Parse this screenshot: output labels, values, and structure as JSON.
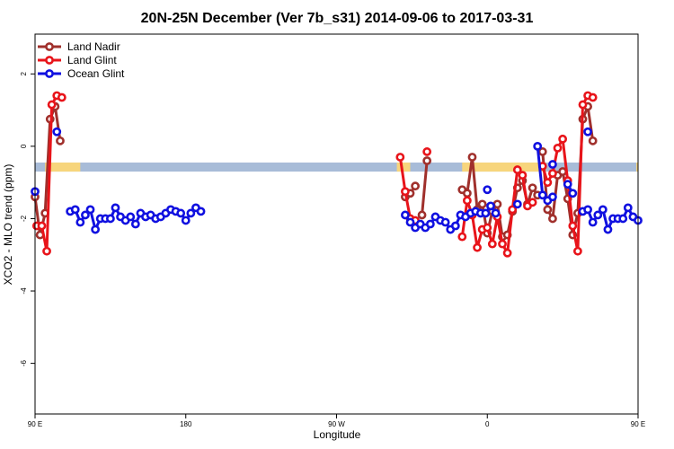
{
  "chart_data": {
    "type": "line",
    "title": "20N-25N December (Ver 7b_s31)   2014-09-06 to 2017-03-31",
    "xlabel": "Longitude",
    "ylabel": "XCO2 - MLO trend (ppm)",
    "xlim": [
      90,
      450
    ],
    "ylim": [
      -7.4,
      3.1
    ],
    "x_ticks": [
      {
        "value": 90,
        "label": "90 E"
      },
      {
        "value": 180,
        "label": "180"
      },
      {
        "value": 270,
        "label": "90 W"
      },
      {
        "value": 360,
        "label": "0"
      },
      {
        "value": 450,
        "label": "90 E"
      },
      {
        "value": 540,
        "label": "180"
      }
    ],
    "y_ticks": [
      {
        "value": 2,
        "label": "2"
      },
      {
        "value": 0,
        "label": "0"
      },
      {
        "value": -2,
        "label": "-2"
      },
      {
        "value": -4,
        "label": "-4"
      },
      {
        "value": -6,
        "label": "-6"
      }
    ],
    "grid": false,
    "legend_position": "top-left",
    "band": {
      "y_min": -0.7,
      "y_max": -0.45,
      "sea_color": "#a8bcd8",
      "land_color": "#f7d57c",
      "land_ranges": [
        [
          96,
          117
        ],
        [
          306,
          314
        ],
        [
          345,
          395
        ],
        [
          449,
          478
        ]
      ]
    },
    "series": [
      {
        "name": "Land Nadir",
        "color": "#a0302c",
        "segments": [
          [
            [
              90,
              -1.4
            ],
            [
              93,
              -2.45
            ],
            [
              96,
              -1.85
            ],
            [
              99,
              0.75
            ],
            [
              102,
              1.1
            ],
            [
              105,
              0.15
            ]
          ],
          [
            [
              311,
              -1.4
            ],
            [
              314,
              -1.3
            ],
            [
              317,
              -1.1
            ]
          ],
          [
            [
              321,
              -1.9
            ],
            [
              324,
              -0.4
            ]
          ],
          [
            [
              345,
              -1.2
            ],
            [
              348,
              -1.3
            ],
            [
              351,
              -0.3
            ],
            [
              354,
              -1.75
            ],
            [
              357,
              -1.6
            ],
            [
              360,
              -2.4
            ],
            [
              363,
              -1.8
            ],
            [
              366,
              -1.6
            ],
            [
              369,
              -2.5
            ],
            [
              372,
              -2.45
            ],
            [
              375,
              -1.8
            ],
            [
              378,
              -1.15
            ],
            [
              381,
              -0.95
            ],
            [
              384,
              -1.6
            ],
            [
              387,
              -1.15
            ],
            [
              390,
              -1.35
            ]
          ],
          [
            [
              393,
              -0.15
            ],
            [
              396,
              -1.75
            ],
            [
              399,
              -2.0
            ],
            [
              402,
              -0.8
            ],
            [
              405,
              -0.7
            ],
            [
              408,
              -1.45
            ],
            [
              411,
              -2.45
            ],
            [
              414,
              -1.85
            ],
            [
              417,
              0.75
            ],
            [
              420,
              1.1
            ],
            [
              423,
              0.15
            ]
          ]
        ]
      },
      {
        "name": "Land Glint",
        "color": "#e8141a",
        "segments": [
          [
            [
              91,
              -2.2
            ],
            [
              94,
              -2.2
            ],
            [
              97,
              -2.9
            ],
            [
              100,
              1.15
            ],
            [
              103,
              1.4
            ],
            [
              106,
              1.35
            ]
          ],
          [
            [
              308,
              -0.3
            ],
            [
              311,
              -1.25
            ],
            [
              314,
              -2.0
            ],
            [
              317,
              -2.05
            ]
          ],
          [
            [
              324,
              -0.15
            ]
          ],
          [
            [
              345,
              -2.5
            ],
            [
              348,
              -1.5
            ],
            [
              351,
              -1.9
            ],
            [
              354,
              -2.8
            ],
            [
              357,
              -2.3
            ],
            [
              360,
              -2.25
            ],
            [
              363,
              -2.7
            ],
            [
              366,
              -1.95
            ],
            [
              369,
              -2.7
            ],
            [
              372,
              -2.95
            ],
            [
              375,
              -1.75
            ],
            [
              378,
              -0.65
            ],
            [
              381,
              -0.8
            ],
            [
              384,
              -1.65
            ],
            [
              387,
              -1.55
            ]
          ],
          [
            [
              393,
              -0.55
            ],
            [
              396,
              -1.0
            ],
            [
              399,
              -0.75
            ],
            [
              402,
              -0.05
            ],
            [
              405,
              0.2
            ],
            [
              408,
              -0.95
            ],
            [
              411,
              -2.2
            ],
            [
              414,
              -2.9
            ],
            [
              417,
              1.15
            ],
            [
              420,
              1.4
            ],
            [
              423,
              1.35
            ]
          ]
        ]
      },
      {
        "name": "Ocean Glint",
        "color": "#1010e0",
        "segments": [
          [
            [
              90,
              -1.25
            ]
          ],
          [
            [
              103,
              0.4
            ]
          ],
          [
            [
              111,
              -1.8
            ],
            [
              114,
              -1.75
            ],
            [
              117,
              -2.1
            ],
            [
              120,
              -1.9
            ],
            [
              123,
              -1.75
            ],
            [
              126,
              -2.3
            ],
            [
              129,
              -2.0
            ],
            [
              132,
              -2.0
            ],
            [
              135,
              -2.0
            ],
            [
              138,
              -1.7
            ],
            [
              141,
              -1.95
            ],
            [
              144,
              -2.05
            ],
            [
              147,
              -1.95
            ],
            [
              150,
              -2.15
            ],
            [
              153,
              -1.85
            ],
            [
              156,
              -1.95
            ],
            [
              159,
              -1.9
            ],
            [
              162,
              -2.0
            ],
            [
              165,
              -1.95
            ],
            [
              168,
              -1.85
            ],
            [
              171,
              -1.75
            ],
            [
              174,
              -1.8
            ],
            [
              177,
              -1.85
            ],
            [
              180,
              -2.05
            ],
            [
              183,
              -1.85
            ],
            [
              186,
              -1.7
            ],
            [
              189,
              -1.8
            ]
          ],
          [
            [
              311,
              -1.9
            ],
            [
              314,
              -2.1
            ],
            [
              317,
              -2.25
            ],
            [
              320,
              -2.15
            ],
            [
              323,
              -2.25
            ],
            [
              326,
              -2.15
            ],
            [
              329,
              -1.95
            ],
            [
              332,
              -2.05
            ],
            [
              335,
              -2.1
            ],
            [
              338,
              -2.3
            ],
            [
              341,
              -2.2
            ],
            [
              344,
              -1.9
            ],
            [
              347,
              -1.95
            ],
            [
              350,
              -1.85
            ],
            [
              353,
              -1.8
            ],
            [
              356,
              -1.85
            ],
            [
              359,
              -1.85
            ],
            [
              362,
              -1.65
            ],
            [
              365,
              -1.85
            ]
          ],
          [
            [
              360,
              -1.2
            ]
          ],
          [
            [
              378,
              -1.6
            ]
          ],
          [
            [
              390,
              0.0
            ],
            [
              393,
              -1.35
            ],
            [
              396,
              -1.5
            ],
            [
              399,
              -1.4
            ]
          ],
          [
            [
              399,
              -0.5
            ]
          ],
          [
            [
              408,
              -1.05
            ],
            [
              411,
              -1.3
            ]
          ],
          [
            [
              420,
              0.4
            ]
          ],
          [
            [
              417,
              -1.8
            ],
            [
              420,
              -1.75
            ],
            [
              423,
              -2.1
            ],
            [
              426,
              -1.9
            ],
            [
              429,
              -1.75
            ],
            [
              432,
              -2.3
            ],
            [
              435,
              -2.0
            ],
            [
              438,
              -2.0
            ],
            [
              441,
              -2.0
            ],
            [
              444,
              -1.7
            ],
            [
              447,
              -1.95
            ],
            [
              450,
              -2.05
            ]
          ]
        ]
      }
    ]
  }
}
